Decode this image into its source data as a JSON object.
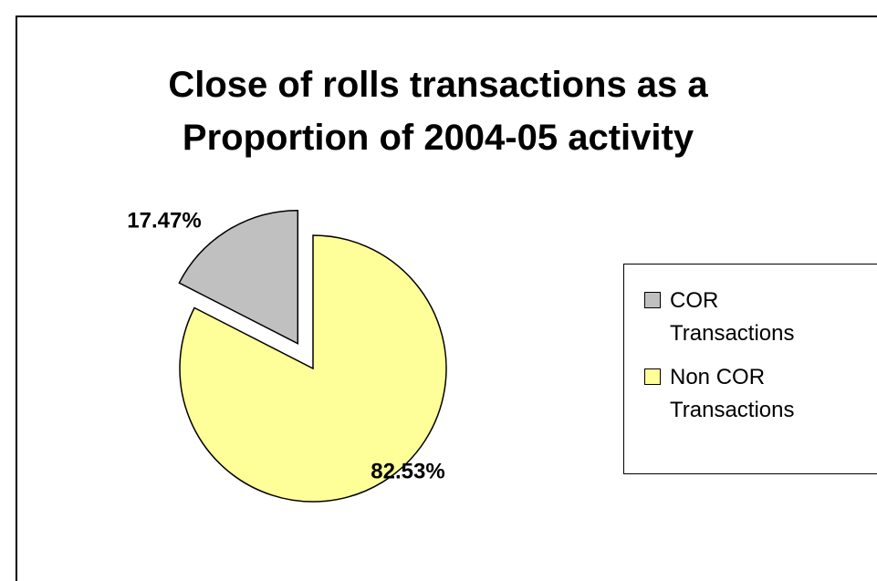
{
  "chart_data": {
    "type": "pie",
    "title": "Close of rolls transactions as a Proportion of 2004-05 activity",
    "categories": [
      "COR Transactions",
      "Non COR Transactions"
    ],
    "values": [
      17.47,
      82.53
    ],
    "value_labels": [
      "17.47%",
      "82.53%"
    ],
    "colors": [
      "#c0c0c0",
      "#ffff99"
    ],
    "exploded": [
      true,
      false
    ]
  }
}
